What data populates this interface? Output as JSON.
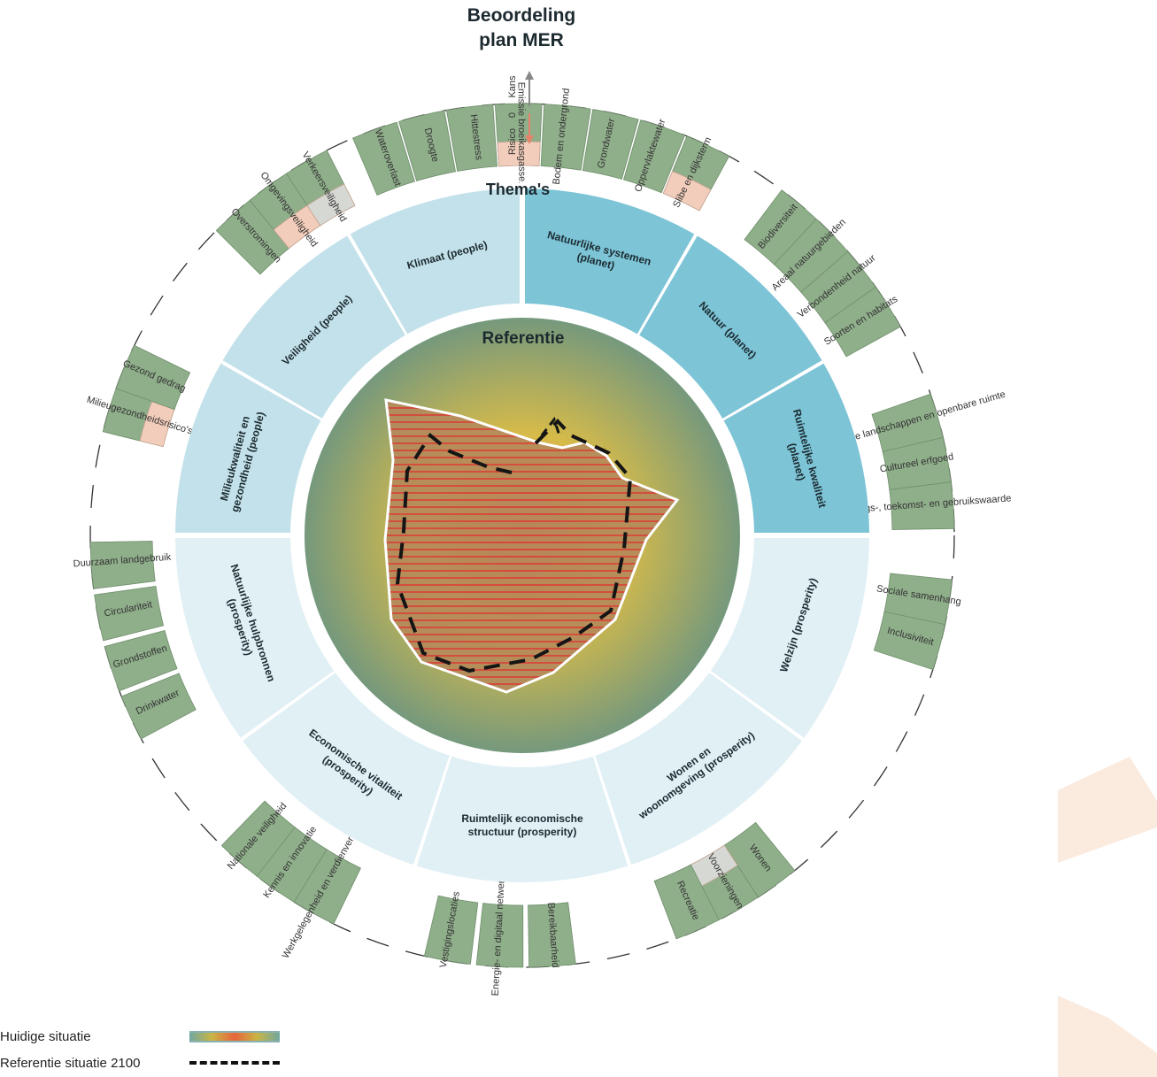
{
  "headings": {
    "beoordeling": [
      "Beoordeling",
      "plan MER"
    ],
    "themas": "Thema's",
    "referentie": "Referentie"
  },
  "scale_key": {
    "kans": "Kans",
    "zero": "0",
    "risico": "Risico"
  },
  "themes": [
    {
      "name": "Klimaat (people)",
      "color": "#c3e1ea"
    },
    {
      "name": "Veiligheid (people)",
      "color": "#c3e1ea"
    },
    {
      "name": "Milieukwaliteit en gezondheid (people)",
      "color": "#c3e1ea"
    },
    {
      "name": "Natuurlijke systemen (planet)",
      "color": "#7cc4d6"
    },
    {
      "name": "Natuur (planet)",
      "color": "#7cc4d6"
    },
    {
      "name": "Ruimtelijke kwaliteit (planet)",
      "color": "#7cc4d6"
    },
    {
      "name": "Welzijn (prosperity)",
      "color": "#e1f0f5"
    },
    {
      "name": "Wonen en woonomgeving (prosperity)",
      "color": "#e1f0f5"
    },
    {
      "name": "Ruimtelijk economische structuur (prosperity)",
      "color": "#e1f0f5"
    },
    {
      "name": "Economische vitaliteit (prosperity)",
      "color": "#e1f0f5"
    },
    {
      "name": "Natuurlijke hulpbronnen (prosperity)",
      "color": "#e1f0f5"
    }
  ],
  "indicators": [
    {
      "label": "Wateroverlast",
      "score": "kans"
    },
    {
      "label": "Droogte",
      "score": "kans"
    },
    {
      "label": "Hittestress",
      "score": "kans"
    },
    {
      "label": "Emissie broeikasgassen",
      "score": "risico"
    },
    {
      "label": "Bodem en ondergrond",
      "score": "kans"
    },
    {
      "label": "Grondwater",
      "score": "kans"
    },
    {
      "label": "Oppervlaktewater",
      "score": "kans"
    },
    {
      "label": "Slibe en dijksterm",
      "score": "risico"
    },
    {
      "label": "Biodiversiteit",
      "score": "kans"
    },
    {
      "label": "Areaal natuurgebieden",
      "score": "kans"
    },
    {
      "label": "Verbondenheid natuur",
      "score": "kans"
    },
    {
      "label": "Soorten en habitats",
      "score": "kans"
    },
    {
      "label": "Waardevolle landschappen en openbare ruimte",
      "score": "kans"
    },
    {
      "label": "Cultureel erfgoed",
      "score": "kans"
    },
    {
      "label": "Belevings-, toekomst- en gebruikswaarde",
      "score": "kans"
    },
    {
      "label": "Sociale samenhang",
      "score": "kans"
    },
    {
      "label": "Inclusiviteit",
      "score": "kans"
    },
    {
      "label": "Wonen",
      "score": "kans"
    },
    {
      "label": "Voorzieningen",
      "score": "neutraal"
    },
    {
      "label": "Recreatie",
      "score": "kans"
    },
    {
      "label": "Bereikbaarheid",
      "score": "kans"
    },
    {
      "label": "Energie- en digitaal netwerk",
      "score": "kans"
    },
    {
      "label": "Vestigingslocaties",
      "score": "kans"
    },
    {
      "label": "Werkgelegenheid en verdienvermogen",
      "score": "kans"
    },
    {
      "label": "Kennis en innovatie",
      "score": "kans"
    },
    {
      "label": "Nationale veiligheid",
      "score": "kans"
    },
    {
      "label": "Drinkwater",
      "score": "kans"
    },
    {
      "label": "Grondstoffen",
      "score": "kans"
    },
    {
      "label": "Circulariteit",
      "score": "kans"
    },
    {
      "label": "Duurzaam landgebruik",
      "score": "kans"
    },
    {
      "label": "Milieugezondheidsrisico's",
      "score": "risico"
    },
    {
      "label": "Gezond gedrag",
      "score": "kans"
    },
    {
      "label": "Overstromingen",
      "score": "kans"
    },
    {
      "label": "Omgevingsveiligheid",
      "score": "risico"
    },
    {
      "label": "Verkeersveiligheid",
      "score": "neutraal"
    }
  ],
  "legend": [
    {
      "label": "Huidige situatie",
      "style": "gradient-hatched"
    },
    {
      "label": "Referentie situatie 2100",
      "style": "dashed"
    }
  ],
  "colors": {
    "green": "#8fae8a",
    "pink": "#f3cdbb",
    "grey": "#d6d8d4",
    "people": "#c3e1ea",
    "planet": "#7cc4d6",
    "prosperity": "#e1f0f5",
    "radar_center": "#ec5a3d",
    "radar_mid": "#d7bb49",
    "radar_edge": "#71977f"
  }
}
